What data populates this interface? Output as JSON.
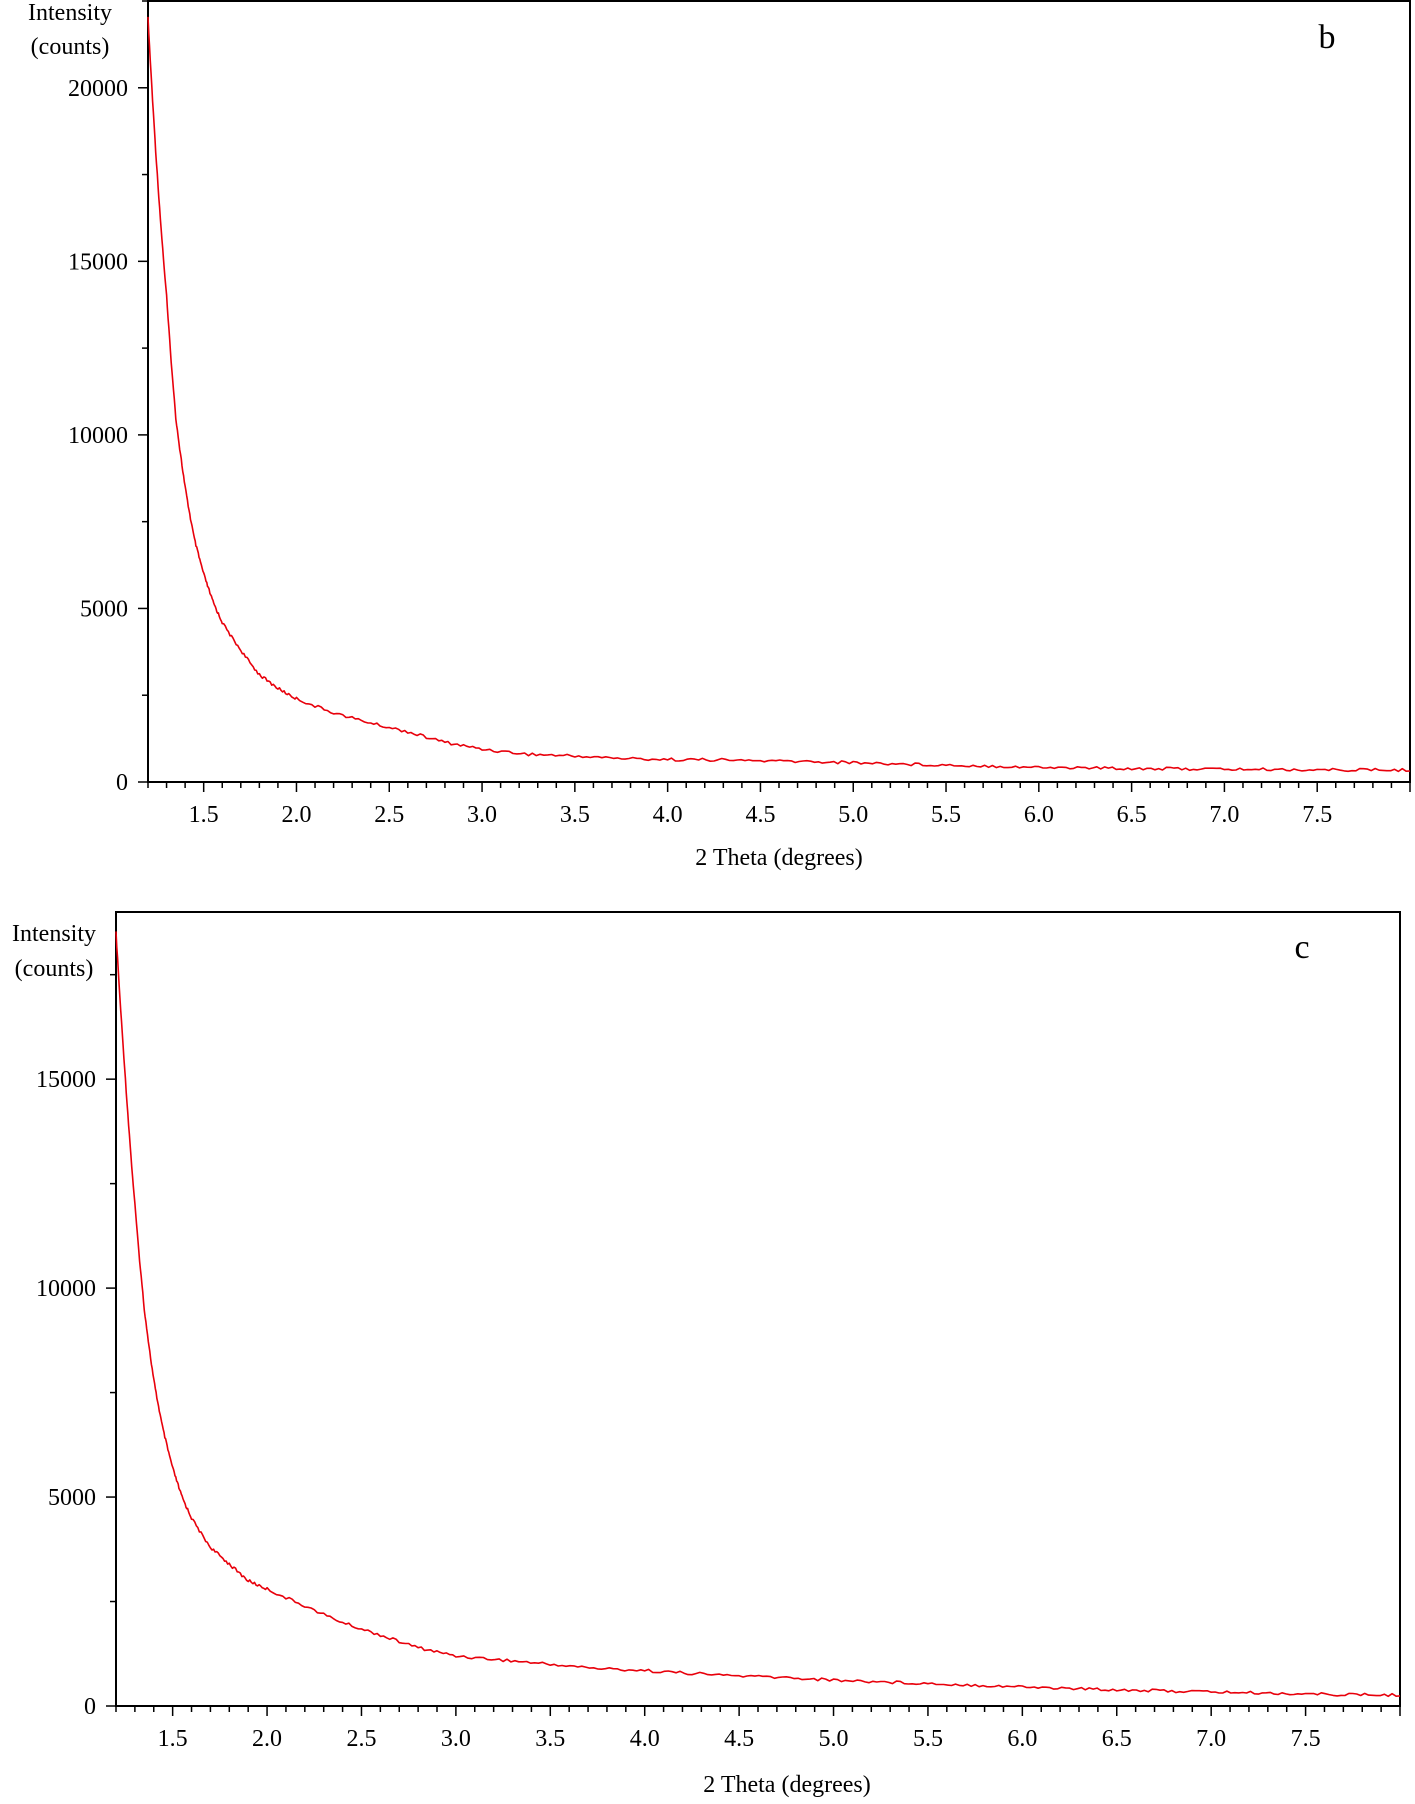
{
  "chart_data": [
    {
      "type": "line",
      "panel_label": "b",
      "xlabel": "2 Theta (degrees)",
      "ylabel": [
        "Intensity",
        "(counts)"
      ],
      "xlim": [
        1.2,
        8.0
      ],
      "ylim": [
        0,
        22500
      ],
      "xticks": [
        "1.5",
        "2.0",
        "2.5",
        "3.0",
        "3.5",
        "4.0",
        "4.5",
        "5.0",
        "5.5",
        "6.0",
        "6.5",
        "7.0",
        "7.5"
      ],
      "yticks": [
        "0",
        "5000",
        "10000",
        "15000",
        "20000"
      ],
      "grid": false,
      "line_color": "#e8000b",
      "x": [
        1.2,
        1.25,
        1.3,
        1.35,
        1.4,
        1.45,
        1.5,
        1.55,
        1.6,
        1.7,
        1.8,
        1.9,
        2.0,
        2.2,
        2.4,
        2.6,
        2.8,
        3.0,
        3.25,
        3.5,
        3.75,
        4.0,
        4.25,
        4.5,
        4.75,
        5.0,
        5.25,
        5.5,
        5.75,
        6.0,
        6.25,
        6.5,
        6.75,
        7.0,
        7.25,
        7.5,
        7.75,
        8.0
      ],
      "values": [
        22000,
        17500,
        14000,
        10500,
        8500,
        7000,
        6000,
        5200,
        4600,
        3800,
        3100,
        2700,
        2400,
        2000,
        1700,
        1450,
        1150,
        950,
        800,
        750,
        680,
        650,
        640,
        610,
        590,
        560,
        520,
        490,
        460,
        420,
        410,
        390,
        380,
        370,
        360,
        350,
        350,
        340
      ]
    },
    {
      "type": "line",
      "panel_label": "c",
      "xlabel": "2 Theta (degrees)",
      "ylabel": [
        "Intensity",
        "(counts)"
      ],
      "xlim": [
        1.2,
        8.0
      ],
      "ylim": [
        0,
        19000
      ],
      "xticks": [
        "1.5",
        "2.0",
        "2.5",
        "3.0",
        "3.5",
        "4.0",
        "4.5",
        "5.0",
        "5.5",
        "6.0",
        "6.5",
        "7.0",
        "7.5"
      ],
      "yticks": [
        "0",
        "5000",
        "10000",
        "15000"
      ],
      "grid": false,
      "line_color": "#e8000b",
      "x": [
        1.2,
        1.25,
        1.3,
        1.35,
        1.4,
        1.45,
        1.5,
        1.55,
        1.6,
        1.7,
        1.8,
        1.9,
        2.0,
        2.2,
        2.4,
        2.6,
        2.8,
        3.0,
        3.25,
        3.5,
        3.75,
        4.0,
        4.25,
        4.5,
        4.75,
        5.0,
        5.25,
        5.5,
        5.75,
        6.0,
        6.25,
        6.5,
        6.75,
        7.0,
        7.25,
        7.5,
        7.75,
        8.0
      ],
      "values": [
        18500,
        15000,
        12000,
        9500,
        7800,
        6600,
        5700,
        5000,
        4500,
        3800,
        3400,
        3000,
        2800,
        2400,
        2000,
        1700,
        1400,
        1200,
        1100,
        1000,
        900,
        850,
        780,
        720,
        680,
        620,
        580,
        540,
        500,
        460,
        420,
        390,
        360,
        340,
        310,
        290,
        270,
        260
      ]
    }
  ]
}
